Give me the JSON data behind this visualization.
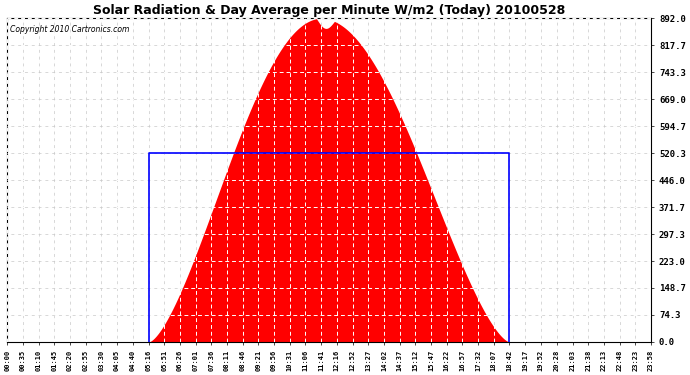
{
  "title": "Solar Radiation & Day Average per Minute W/m2 (Today) 20100528",
  "copyright_text": "Copyright 2010 Cartronics.com",
  "background_color": "#ffffff",
  "plot_bg_color": "#ffffff",
  "ytick_labels": [
    "0.0",
    "74.3",
    "148.7",
    "223.0",
    "297.3",
    "371.7",
    "446.0",
    "520.3",
    "594.7",
    "669.0",
    "743.3",
    "817.7",
    "892.0"
  ],
  "ytick_values": [
    0.0,
    74.3,
    148.7,
    223.0,
    297.3,
    371.7,
    446.0,
    520.3,
    594.7,
    669.0,
    743.3,
    817.7,
    892.0
  ],
  "ymax": 892.0,
  "ymin": 0.0,
  "fill_color": "#ff0000",
  "line_color": "#0000ff",
  "grid_color": "#c8c8c8",
  "grid_dash_color": "#ffffff",
  "solar_start_min": 316,
  "solar_peak_min": 701,
  "solar_end_min": 1122,
  "avg_start_min": 316,
  "avg_end_min": 1122,
  "avg_value": 520.3,
  "total_minutes": 1440,
  "xtick_labels": [
    "00:00",
    "00:35",
    "01:10",
    "01:45",
    "02:20",
    "02:55",
    "03:30",
    "04:05",
    "04:40",
    "05:16",
    "05:51",
    "06:26",
    "07:01",
    "07:36",
    "08:11",
    "08:46",
    "09:21",
    "09:56",
    "10:31",
    "11:06",
    "11:41",
    "12:16",
    "12:52",
    "13:27",
    "14:02",
    "14:37",
    "15:12",
    "15:47",
    "16:22",
    "16:57",
    "17:32",
    "18:07",
    "18:42",
    "19:17",
    "19:52",
    "20:28",
    "21:03",
    "21:38",
    "22:13",
    "22:48",
    "23:23",
    "23:58"
  ],
  "xtick_minutes": [
    0,
    35,
    70,
    105,
    140,
    175,
    210,
    245,
    280,
    316,
    351,
    386,
    421,
    456,
    491,
    526,
    561,
    596,
    631,
    666,
    701,
    736,
    772,
    807,
    842,
    877,
    912,
    947,
    982,
    1017,
    1052,
    1087,
    1122,
    1157,
    1192,
    1228,
    1263,
    1298,
    1333,
    1368,
    1403,
    1438
  ]
}
